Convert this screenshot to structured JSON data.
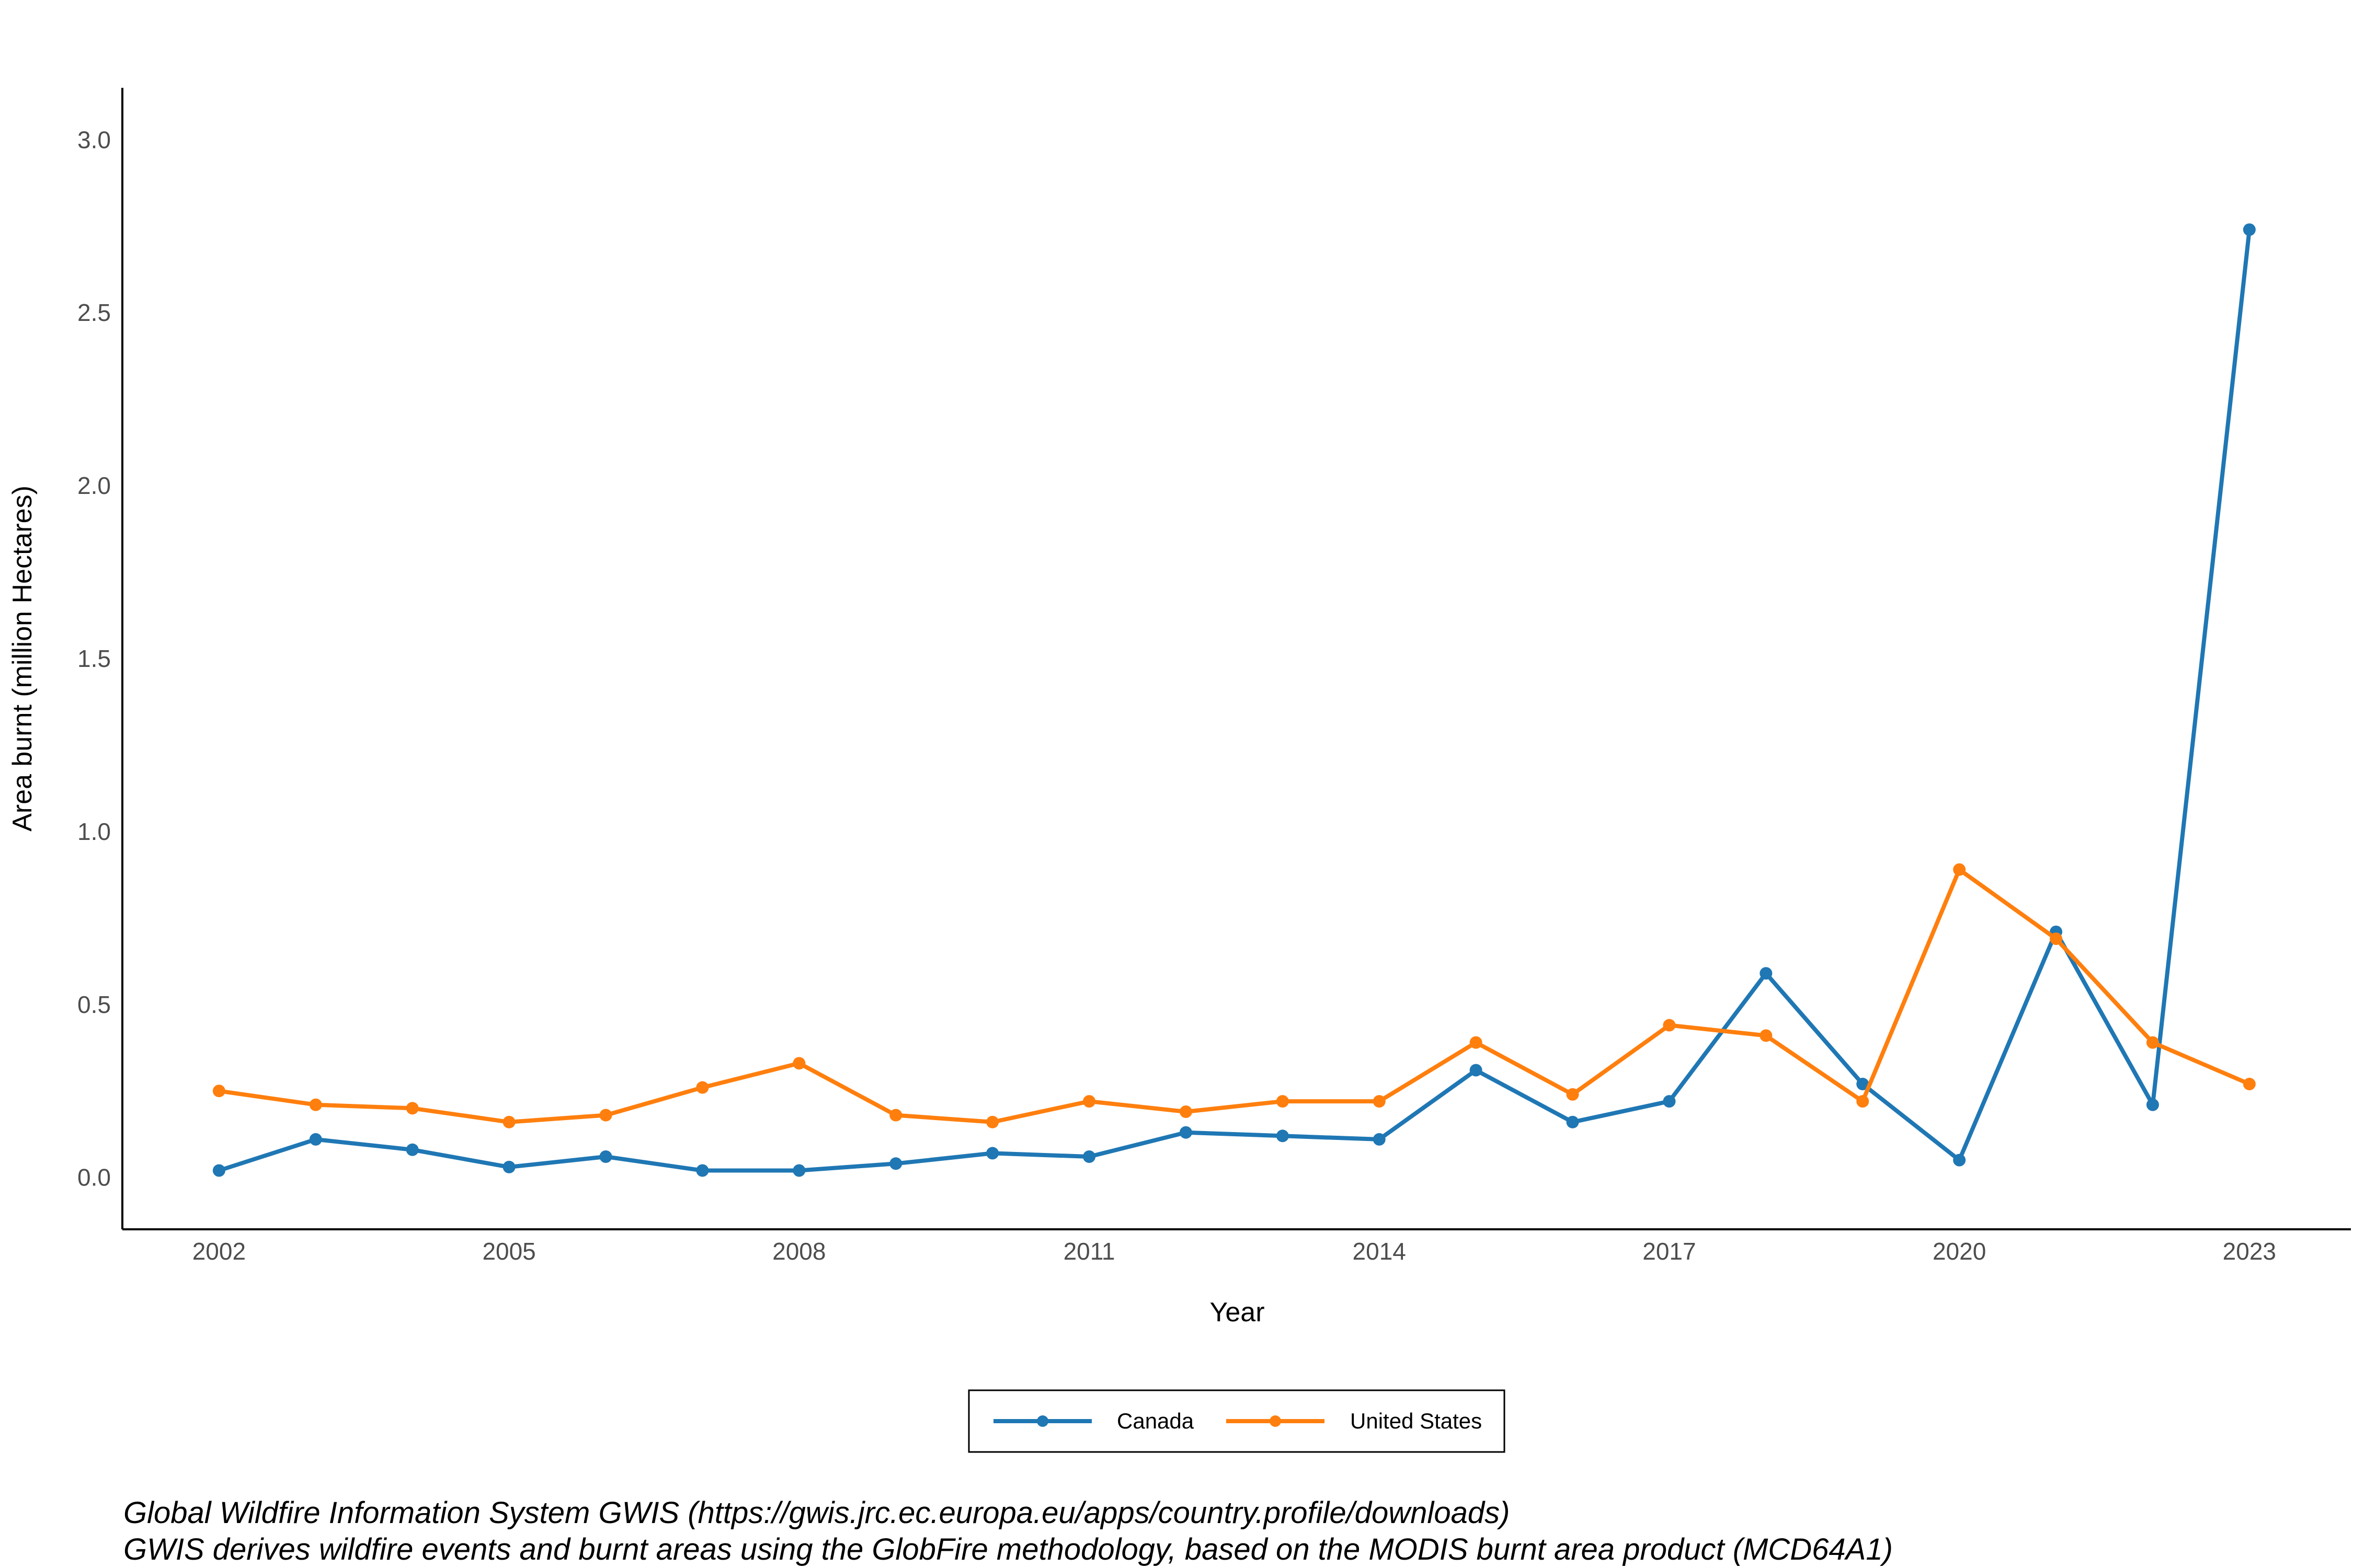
{
  "chart_data": {
    "type": "line",
    "title": "",
    "xlabel": "Year",
    "ylabel": "Area burnt (million Hectares)",
    "x": [
      2002,
      2003,
      2004,
      2005,
      2006,
      2007,
      2008,
      2009,
      2010,
      2011,
      2012,
      2013,
      2014,
      2015,
      2016,
      2017,
      2018,
      2019,
      2020,
      2021,
      2022,
      2023
    ],
    "xticks": [
      2002,
      2005,
      2008,
      2011,
      2014,
      2017,
      2020,
      2023
    ],
    "xtick_labels": [
      "2002",
      "2005",
      "2008",
      "2011",
      "2014",
      "2017",
      "2020",
      "2023"
    ],
    "yticks": [
      0.0,
      0.5,
      1.0,
      1.5,
      2.0,
      2.5,
      3.0
    ],
    "ytick_labels": [
      "0.0",
      "0.5",
      "1.0",
      "1.5",
      "2.0",
      "2.5",
      "3.0"
    ],
    "xlim": [
      2001,
      2024.05
    ],
    "ylim": [
      -0.15,
      3.15
    ],
    "grid": false,
    "legend_position": "bottom",
    "series": [
      {
        "name": "Canada",
        "color": "#1f77b4",
        "values": [
          0.02,
          0.11,
          0.08,
          0.03,
          0.06,
          0.02,
          0.02,
          0.04,
          0.07,
          0.06,
          0.13,
          0.12,
          0.11,
          0.31,
          0.16,
          0.22,
          0.59,
          0.27,
          0.05,
          0.71,
          0.21,
          2.74
        ]
      },
      {
        "name": "United States",
        "color": "#ff7f0e",
        "values": [
          0.25,
          0.21,
          0.2,
          0.16,
          0.18,
          0.26,
          0.33,
          0.18,
          0.16,
          0.22,
          0.19,
          0.22,
          0.22,
          0.39,
          0.24,
          0.44,
          0.41,
          0.22,
          0.89,
          0.69,
          0.39,
          0.27
        ]
      }
    ]
  },
  "caption": {
    "line1": "Global Wildfire Information System GWIS (https://gwis.jrc.ec.europa.eu/apps/country.profile/downloads)",
    "line2": "GWIS derives wildfire events and burnt areas using the GlobFire methodology, based on the MODIS burnt area product (MCD64A1)"
  }
}
